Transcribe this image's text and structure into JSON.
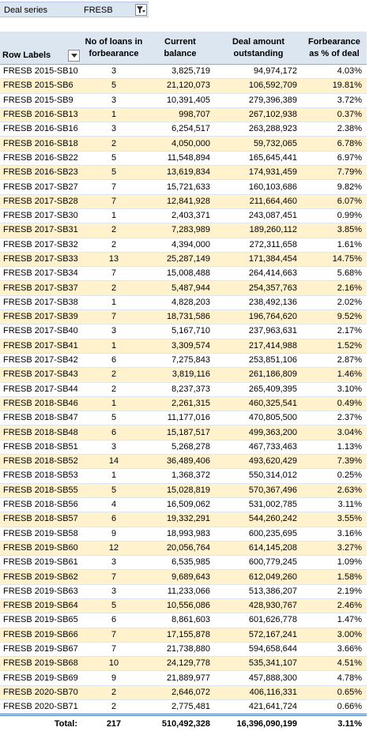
{
  "filter": {
    "label": "Deal series",
    "value": "FRESB",
    "icon": "filter-icon"
  },
  "headers": {
    "row_labels": "Row Labels",
    "loans_line1": "No of loans in",
    "loans_line2": "forbearance",
    "balance_line1": "Current",
    "balance_line2": "balance",
    "deal_line1": "Deal amount",
    "deal_line2": "outstanding",
    "pct_line1": "Forbearance",
    "pct_line2": "as % of deal",
    "dropdown_icon": "dropdown-arrow-icon"
  },
  "rows": [
    {
      "series": "FRESB 2015-SB10",
      "loans": "3",
      "balance": "3,825,719",
      "deal": "94,974,172",
      "pct": "4.03%"
    },
    {
      "series": "FRESB 2015-SB6",
      "loans": "5",
      "balance": "21,120,073",
      "deal": "106,592,709",
      "pct": "19.81%"
    },
    {
      "series": "FRESB 2015-SB9",
      "loans": "3",
      "balance": "10,391,405",
      "deal": "279,396,389",
      "pct": "3.72%"
    },
    {
      "series": "FRESB 2016-SB13",
      "loans": "1",
      "balance": "998,707",
      "deal": "267,102,938",
      "pct": "0.37%"
    },
    {
      "series": "FRESB 2016-SB16",
      "loans": "3",
      "balance": "6,254,517",
      "deal": "263,288,923",
      "pct": "2.38%"
    },
    {
      "series": "FRESB 2016-SB18",
      "loans": "2",
      "balance": "4,050,000",
      "deal": "59,732,065",
      "pct": "6.78%"
    },
    {
      "series": "FRESB 2016-SB22",
      "loans": "5",
      "balance": "11,548,894",
      "deal": "165,645,441",
      "pct": "6.97%"
    },
    {
      "series": "FRESB 2016-SB23",
      "loans": "5",
      "balance": "13,619,834",
      "deal": "174,931,459",
      "pct": "7.79%"
    },
    {
      "series": "FRESB 2017-SB27",
      "loans": "7",
      "balance": "15,721,633",
      "deal": "160,103,686",
      "pct": "9.82%"
    },
    {
      "series": "FRESB 2017-SB28",
      "loans": "7",
      "balance": "12,841,928",
      "deal": "211,664,460",
      "pct": "6.07%"
    },
    {
      "series": "FRESB 2017-SB30",
      "loans": "1",
      "balance": "2,403,371",
      "deal": "243,087,451",
      "pct": "0.99%"
    },
    {
      "series": "FRESB 2017-SB31",
      "loans": "2",
      "balance": "7,283,989",
      "deal": "189,260,112",
      "pct": "3.85%"
    },
    {
      "series": "FRESB 2017-SB32",
      "loans": "2",
      "balance": "4,394,000",
      "deal": "272,311,658",
      "pct": "1.61%"
    },
    {
      "series": "FRESB 2017-SB33",
      "loans": "13",
      "balance": "25,287,149",
      "deal": "171,384,454",
      "pct": "14.75%"
    },
    {
      "series": "FRESB 2017-SB34",
      "loans": "7",
      "balance": "15,008,488",
      "deal": "264,414,663",
      "pct": "5.68%"
    },
    {
      "series": "FRESB 2017-SB37",
      "loans": "2",
      "balance": "5,487,944",
      "deal": "254,357,763",
      "pct": "2.16%"
    },
    {
      "series": "FRESB 2017-SB38",
      "loans": "1",
      "balance": "4,828,203",
      "deal": "238,492,136",
      "pct": "2.02%"
    },
    {
      "series": "FRESB 2017-SB39",
      "loans": "7",
      "balance": "18,731,586",
      "deal": "196,764,620",
      "pct": "9.52%"
    },
    {
      "series": "FRESB 2017-SB40",
      "loans": "3",
      "balance": "5,167,710",
      "deal": "237,963,631",
      "pct": "2.17%"
    },
    {
      "series": "FRESB 2017-SB41",
      "loans": "1",
      "balance": "3,309,574",
      "deal": "217,414,988",
      "pct": "1.52%"
    },
    {
      "series": "FRESB 2017-SB42",
      "loans": "6",
      "balance": "7,275,843",
      "deal": "253,851,106",
      "pct": "2.87%"
    },
    {
      "series": "FRESB 2017-SB43",
      "loans": "2",
      "balance": "3,819,116",
      "deal": "261,186,809",
      "pct": "1.46%"
    },
    {
      "series": "FRESB 2017-SB44",
      "loans": "2",
      "balance": "8,237,373",
      "deal": "265,409,395",
      "pct": "3.10%"
    },
    {
      "series": "FRESB 2018-SB46",
      "loans": "1",
      "balance": "2,261,315",
      "deal": "460,325,541",
      "pct": "0.49%"
    },
    {
      "series": "FRESB 2018-SB47",
      "loans": "5",
      "balance": "11,177,016",
      "deal": "470,805,500",
      "pct": "2.37%"
    },
    {
      "series": "FRESB 2018-SB48",
      "loans": "6",
      "balance": "15,187,517",
      "deal": "499,363,200",
      "pct": "3.04%"
    },
    {
      "series": "FRESB 2018-SB51",
      "loans": "3",
      "balance": "5,268,278",
      "deal": "467,733,463",
      "pct": "1.13%"
    },
    {
      "series": "FRESB 2018-SB52",
      "loans": "14",
      "balance": "36,489,406",
      "deal": "493,620,429",
      "pct": "7.39%"
    },
    {
      "series": "FRESB 2018-SB53",
      "loans": "1",
      "balance": "1,368,372",
      "deal": "550,314,012",
      "pct": "0.25%"
    },
    {
      "series": "FRESB 2018-SB55",
      "loans": "5",
      "balance": "15,028,819",
      "deal": "570,367,496",
      "pct": "2.63%"
    },
    {
      "series": "FRESB 2018-SB56",
      "loans": "4",
      "balance": "16,509,062",
      "deal": "531,002,785",
      "pct": "3.11%"
    },
    {
      "series": "FRESB 2018-SB57",
      "loans": "6",
      "balance": "19,332,291",
      "deal": "544,260,242",
      "pct": "3.55%"
    },
    {
      "series": "FRESB 2019-SB58",
      "loans": "9",
      "balance": "18,993,983",
      "deal": "600,235,695",
      "pct": "3.16%"
    },
    {
      "series": "FRESB 2019-SB60",
      "loans": "12",
      "balance": "20,056,764",
      "deal": "614,145,208",
      "pct": "3.27%"
    },
    {
      "series": "FRESB 2019-SB61",
      "loans": "3",
      "balance": "6,535,985",
      "deal": "600,779,245",
      "pct": "1.09%"
    },
    {
      "series": "FRESB 2019-SB62",
      "loans": "7",
      "balance": "9,689,643",
      "deal": "612,049,260",
      "pct": "1.58%"
    },
    {
      "series": "FRESB 2019-SB63",
      "loans": "3",
      "balance": "11,233,066",
      "deal": "513,386,207",
      "pct": "2.19%"
    },
    {
      "series": "FRESB 2019-SB64",
      "loans": "5",
      "balance": "10,556,086",
      "deal": "428,930,767",
      "pct": "2.46%"
    },
    {
      "series": "FRESB 2019-SB65",
      "loans": "6",
      "balance": "8,861,603",
      "deal": "601,626,778",
      "pct": "1.47%"
    },
    {
      "series": "FRESB 2019-SB66",
      "loans": "7",
      "balance": "17,155,878",
      "deal": "572,167,241",
      "pct": "3.00%"
    },
    {
      "series": "FRESB 2019-SB67",
      "loans": "7",
      "balance": "21,738,880",
      "deal": "594,658,644",
      "pct": "3.66%"
    },
    {
      "series": "FRESB 2019-SB68",
      "loans": "10",
      "balance": "24,129,778",
      "deal": "535,341,107",
      "pct": "4.51%"
    },
    {
      "series": "FRESB 2019-SB69",
      "loans": "9",
      "balance": "21,889,977",
      "deal": "457,888,300",
      "pct": "4.78%"
    },
    {
      "series": "FRESB 2020-SB70",
      "loans": "2",
      "balance": "2,646,072",
      "deal": "406,116,331",
      "pct": "0.65%"
    },
    {
      "series": "FRESB 2020-SB71",
      "loans": "2",
      "balance": "2,775,481",
      "deal": "421,641,724",
      "pct": "0.66%"
    }
  ],
  "total": {
    "label": "Total:",
    "loans": "217",
    "balance": "510,492,328",
    "deal": "16,396,090,199",
    "pct": "3.11%"
  },
  "colors": {
    "header_bg": "#dce6f1",
    "band_bg": "#fff2cc",
    "total_border": "#4472c4"
  }
}
